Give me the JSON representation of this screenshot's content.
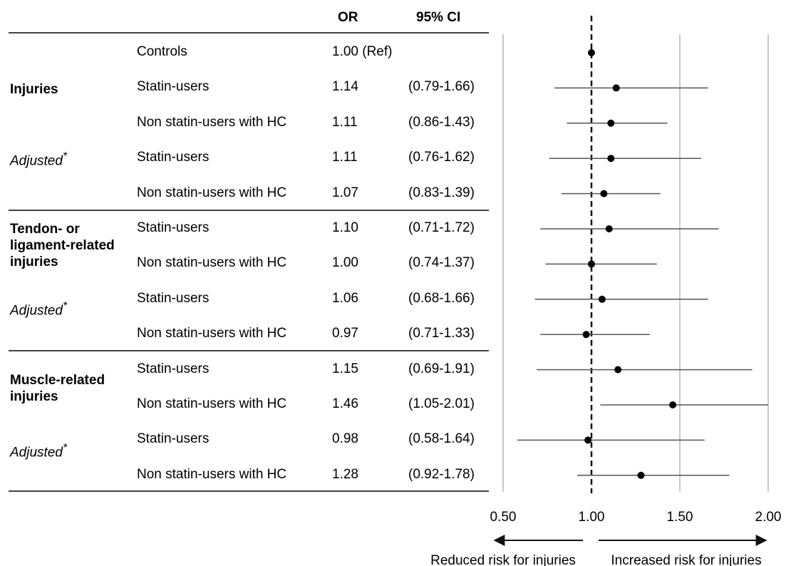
{
  "header": {
    "or": "OR",
    "ci": "95% CI"
  },
  "groups": [
    {
      "label": "Injuries",
      "adjusted": "Adjusted"
    },
    {
      "label": "Tendon- or ligament-related injuries",
      "adjusted": "Adjusted"
    },
    {
      "label": "Muscle-related injuries",
      "adjusted": "Adjusted"
    }
  ],
  "asterisk": "*",
  "rows": [
    {
      "label": "Controls",
      "or": "1.00 (Ref)",
      "ci": ""
    },
    {
      "label": "Statin-users",
      "or": "1.14",
      "ci": "(0.79-1.66)"
    },
    {
      "label": "Non statin-users with HC",
      "or": "1.11",
      "ci": "(0.86-1.43)"
    },
    {
      "label": "Statin-users",
      "or": "1.11",
      "ci": "(0.76-1.62)"
    },
    {
      "label": "Non statin-users with HC",
      "or": "1.07",
      "ci": "(0.83-1.39)"
    },
    {
      "label": "Statin-users",
      "or": "1.10",
      "ci": "(0.71-1.72)"
    },
    {
      "label": "Non statin-users with HC",
      "or": "1.00",
      "ci": "(0.74-1.37)"
    },
    {
      "label": "Statin-users",
      "or": "1.06",
      "ci": "(0.68-1.66)"
    },
    {
      "label": "Non statin-users with HC",
      "or": "0.97",
      "ci": "(0.71-1.33)"
    },
    {
      "label": "Statin-users",
      "or": "1.15",
      "ci": "(0.69-1.91)"
    },
    {
      "label": "Non statin-users with HC",
      "or": "1.46",
      "ci": "(1.05-2.01)"
    },
    {
      "label": "Statin-users",
      "or": "0.98",
      "ci": "(0.58-1.64)"
    },
    {
      "label": "Non statin-users with HC",
      "or": "1.28",
      "ci": "(0.92-1.78)"
    }
  ],
  "arrows": {
    "left": "Reduced risk for injuries",
    "right": "Increased risk for injuries"
  },
  "chart_data": {
    "type": "forest",
    "xlim": [
      0.5,
      2.0
    ],
    "xticks": [
      "0.50",
      "1.00",
      "1.50",
      "2.00"
    ],
    "reference_line": 1.0,
    "grid": "vertical",
    "categories": [
      "Controls",
      "Injuries - Statin-users",
      "Injuries - Non statin-users with HC",
      "Injuries Adjusted* - Statin-users",
      "Injuries Adjusted* - Non statin-users with HC",
      "Tendon- or ligament-related injuries - Statin-users",
      "Tendon- or ligament-related injuries - Non statin-users with HC",
      "Tendon- or ligament-related injuries Adjusted* - Statin-users",
      "Tendon- or ligament-related injuries Adjusted* - Non statin-users with HC",
      "Muscle-related injuries - Statin-users",
      "Muscle-related injuries - Non statin-users with HC",
      "Muscle-related injuries Adjusted* - Statin-users",
      "Muscle-related injuries Adjusted* - Non statin-users with HC"
    ],
    "or": [
      1.0,
      1.14,
      1.11,
      1.11,
      1.07,
      1.1,
      1.0,
      1.06,
      0.97,
      1.15,
      1.46,
      0.98,
      1.28
    ],
    "ci_low": [
      null,
      0.79,
      0.86,
      0.76,
      0.83,
      0.71,
      0.74,
      0.68,
      0.71,
      0.69,
      1.05,
      0.58,
      0.92
    ],
    "ci_high": [
      null,
      1.66,
      1.43,
      1.62,
      1.39,
      1.72,
      1.37,
      1.66,
      1.33,
      1.91,
      2.01,
      1.64,
      1.78
    ]
  }
}
